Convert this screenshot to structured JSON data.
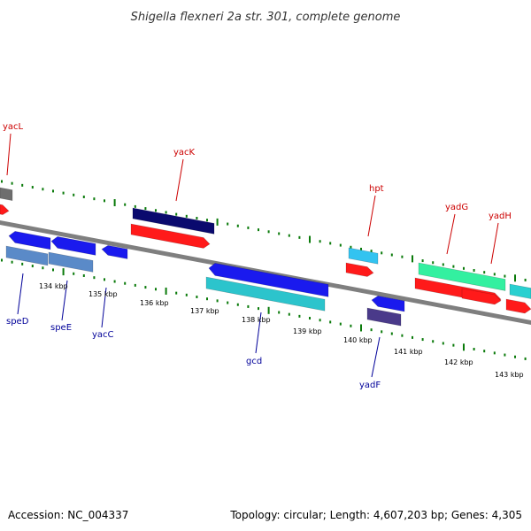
{
  "title": "Shigella flexneri 2a str. 301, complete genome",
  "footer": {
    "accession": "Accession: NC_004337",
    "summary": "Topology: circular; Length: 4,607,203 bp; Genes: 4,305"
  },
  "colors": {
    "backbone": "#7f7f7f",
    "tick": "#0a7a0a",
    "forward_label": "#cc0000",
    "reverse_label": "#000099"
  },
  "axis": {
    "unit": "kbp",
    "labels": [
      "134 kbp",
      "135 kbp",
      "136 kbp",
      "137 kbp",
      "138 kbp",
      "139 kbp",
      "140 kbp",
      "141 kbp",
      "142 kbp",
      "143 kbp"
    ]
  },
  "forward_labels": [
    {
      "name": "yacL"
    },
    {
      "name": "yacK"
    },
    {
      "name": "hpt"
    },
    {
      "name": "yadG"
    },
    {
      "name": "yadH"
    }
  ],
  "reverse_labels": [
    {
      "name": "speD"
    },
    {
      "name": "speE"
    },
    {
      "name": "yacC"
    },
    {
      "name": "gcd"
    },
    {
      "name": "yadF"
    }
  ]
}
